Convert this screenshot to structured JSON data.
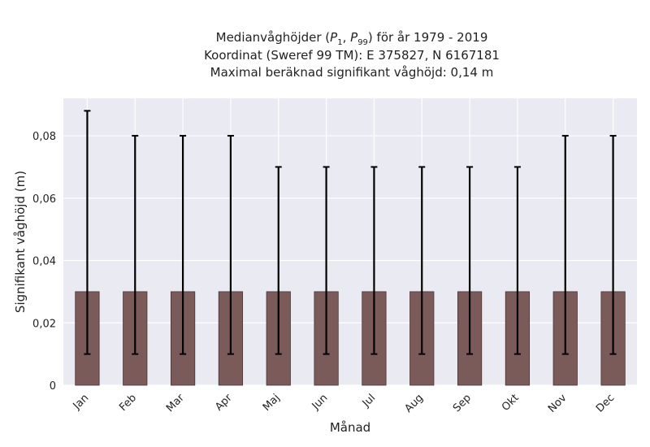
{
  "chart_data": {
    "type": "bar",
    "title_lines": [
      "Medianvåghöjder (P1, P99) för år 1979 - 2019",
      "Koordinat (Sweref 99 TM): E 375827, N 6167181",
      "Maximal beräknad signifikant våghöjd: 0,14 m"
    ],
    "xlabel": "Månad",
    "ylabel": "Signifikant våghöjd (m)",
    "categories": [
      "Jan",
      "Feb",
      "Mar",
      "Apr",
      "Maj",
      "Jun",
      "Jul",
      "Aug",
      "Sep",
      "Okt",
      "Nov",
      "Dec"
    ],
    "values": [
      0.03,
      0.03,
      0.03,
      0.03,
      0.03,
      0.03,
      0.03,
      0.03,
      0.03,
      0.03,
      0.03,
      0.03
    ],
    "p1": [
      0.01,
      0.01,
      0.01,
      0.01,
      0.01,
      0.01,
      0.01,
      0.01,
      0.01,
      0.01,
      0.01,
      0.01
    ],
    "p99": [
      0.088,
      0.08,
      0.08,
      0.08,
      0.07,
      0.07,
      0.07,
      0.07,
      0.07,
      0.07,
      0.08,
      0.08
    ],
    "ylim": [
      0,
      0.092
    ],
    "yticks": [
      0,
      0.02,
      0.04,
      0.06,
      0.08
    ],
    "ytick_labels": [
      "0",
      "0,02",
      "0,04",
      "0,06",
      "0,08"
    ],
    "grid": true,
    "colors": {
      "bar": "#7b5a5a",
      "bar_edge": "#4a3434",
      "errorbar": "#000000",
      "plot_bg": "#eaeaf2",
      "grid": "#ffffff"
    }
  }
}
